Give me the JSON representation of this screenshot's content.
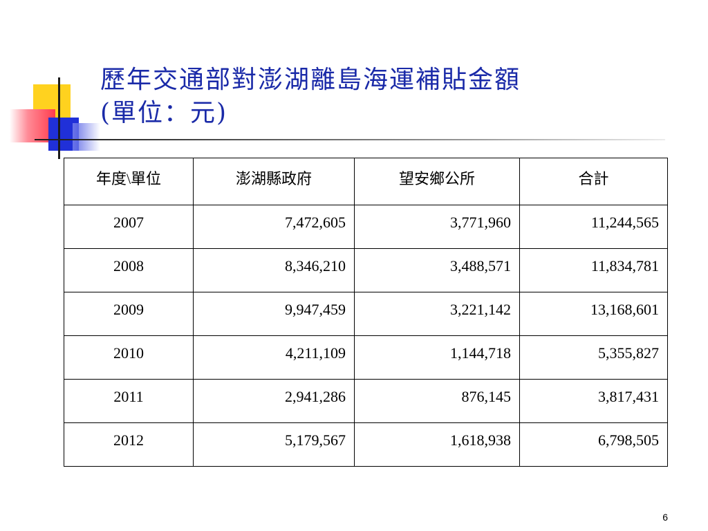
{
  "slide": {
    "title_line1": "歷年交通部對澎湖離島海運補貼金額",
    "title_line2": "(單位：元)",
    "page_number": "6"
  },
  "table": {
    "headers": [
      "年度\\單位",
      "澎湖縣政府",
      "望安鄉公所",
      "合計"
    ],
    "rows": [
      [
        "2007",
        "7,472,605",
        "3,771,960",
        "11,244,565"
      ],
      [
        "2008",
        "8,346,210",
        "3,488,571",
        "11,834,781"
      ],
      [
        "2009",
        "9,947,459",
        "3,221,142",
        "13,168,601"
      ],
      [
        "2010",
        "4,211,109",
        "1,144,718",
        "5,355,827"
      ],
      [
        "2011",
        "2,941,286",
        "876,145",
        "3,817,431"
      ],
      [
        "2012",
        "5,179,567",
        "1,618,938",
        "6,798,505"
      ]
    ]
  },
  "colors": {
    "title": "#1a2aa8",
    "deco_yellow": "#ffd21f",
    "deco_blue": "#2030d8",
    "deco_red": "#ff3b4c"
  }
}
